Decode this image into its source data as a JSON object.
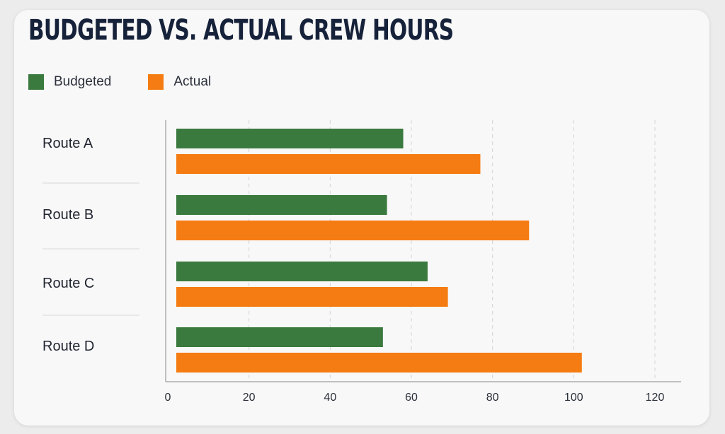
{
  "chart_data": {
    "type": "bar",
    "orientation": "horizontal",
    "title": "BUDGETED VS. ACTUAL CREW HOURS",
    "xlabel": "",
    "ylabel": "",
    "categories": [
      "Route A",
      "Route B",
      "Route C",
      "Route D"
    ],
    "series": [
      {
        "name": "Budgeted",
        "color": "#3b7a3e",
        "values": [
          58,
          54,
          64,
          53
        ]
      },
      {
        "name": "Actual",
        "color": "#f57c12",
        "values": [
          77,
          89,
          69,
          102
        ]
      }
    ],
    "xlim": [
      0,
      120
    ],
    "xticks": [
      "0",
      "20",
      "40",
      "60",
      "80",
      "100",
      "120"
    ],
    "grid": "vertical dashed",
    "legend": "top-left"
  }
}
